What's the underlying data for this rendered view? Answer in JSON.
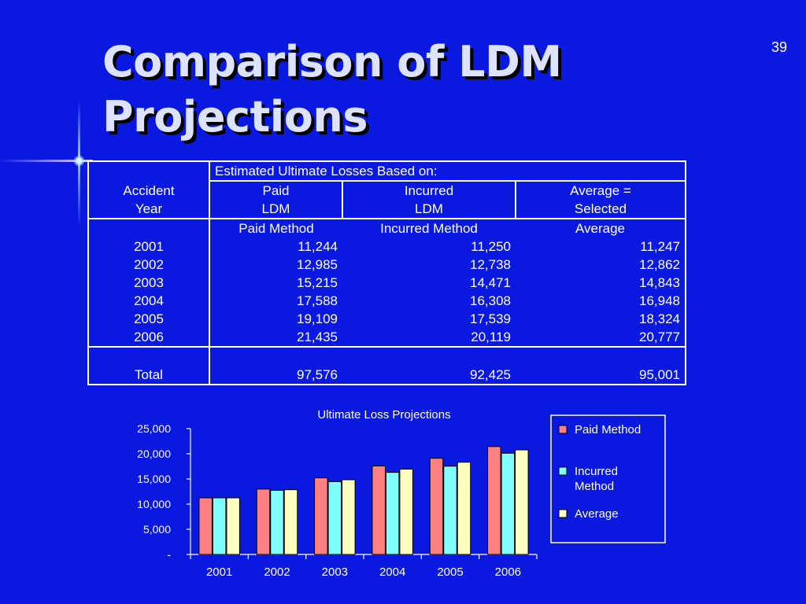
{
  "slide": {
    "title_line1": "Comparison of LDM",
    "title_line2": "Projections",
    "number": "39"
  },
  "table": {
    "top_header": "Estimated Ultimate Losses Based on:",
    "row_header_line1": "Accident",
    "row_header_line2": "Year",
    "column_headers": [
      {
        "line1": "Paid",
        "line2": "LDM"
      },
      {
        "line1": "Incurred",
        "line2": "LDM"
      },
      {
        "line1": "Average =",
        "line2": "Selected"
      }
    ],
    "method_labels": [
      "Paid Method",
      "Incurred Method",
      "Average"
    ],
    "rows": [
      {
        "year": "2001",
        "paid": "11,244",
        "incurred": "11,250",
        "average": "11,247"
      },
      {
        "year": "2002",
        "paid": "12,985",
        "incurred": "12,738",
        "average": "12,862"
      },
      {
        "year": "2003",
        "paid": "15,215",
        "incurred": "14,471",
        "average": "14,843"
      },
      {
        "year": "2004",
        "paid": "17,588",
        "incurred": "16,308",
        "average": "16,948"
      },
      {
        "year": "2005",
        "paid": "19,109",
        "incurred": "17,539",
        "average": "18,324"
      },
      {
        "year": "2006",
        "paid": "21,435",
        "incurred": "20,119",
        "average": "20,777"
      }
    ],
    "total": {
      "label": "Total",
      "paid": "97,576",
      "incurred": "92,425",
      "average": "95,001"
    }
  },
  "chart_data": {
    "type": "bar",
    "title": "Ultimate Loss Projections",
    "categories": [
      "2001",
      "2002",
      "2003",
      "2004",
      "2005",
      "2006"
    ],
    "series": [
      {
        "name": "Paid Method",
        "values": [
          11244,
          12985,
          15215,
          17588,
          19109,
          21435
        ],
        "color": "#ff8080"
      },
      {
        "name": "Incurred Method",
        "values": [
          11250,
          12738,
          14471,
          16308,
          17539,
          20119
        ],
        "color": "#80ffff"
      },
      {
        "name": "Average",
        "values": [
          11247,
          12862,
          14843,
          16948,
          18324,
          20777
        ],
        "color": "#ffffc0"
      }
    ],
    "legend_labels": {
      "paid_line1": "Paid Method",
      "incurred_line1": "Incurred",
      "incurred_line2": "Method",
      "average_line1": "Average"
    },
    "ylim": [
      0,
      25000
    ],
    "yticks": [
      0,
      5000,
      10000,
      15000,
      20000,
      25000
    ],
    "ytick_labels": [
      "-",
      "5,000",
      "10,000",
      "15,000",
      "20,000",
      "25,000"
    ],
    "xlabel": "",
    "ylabel": "",
    "grid": false,
    "legend": "right"
  }
}
